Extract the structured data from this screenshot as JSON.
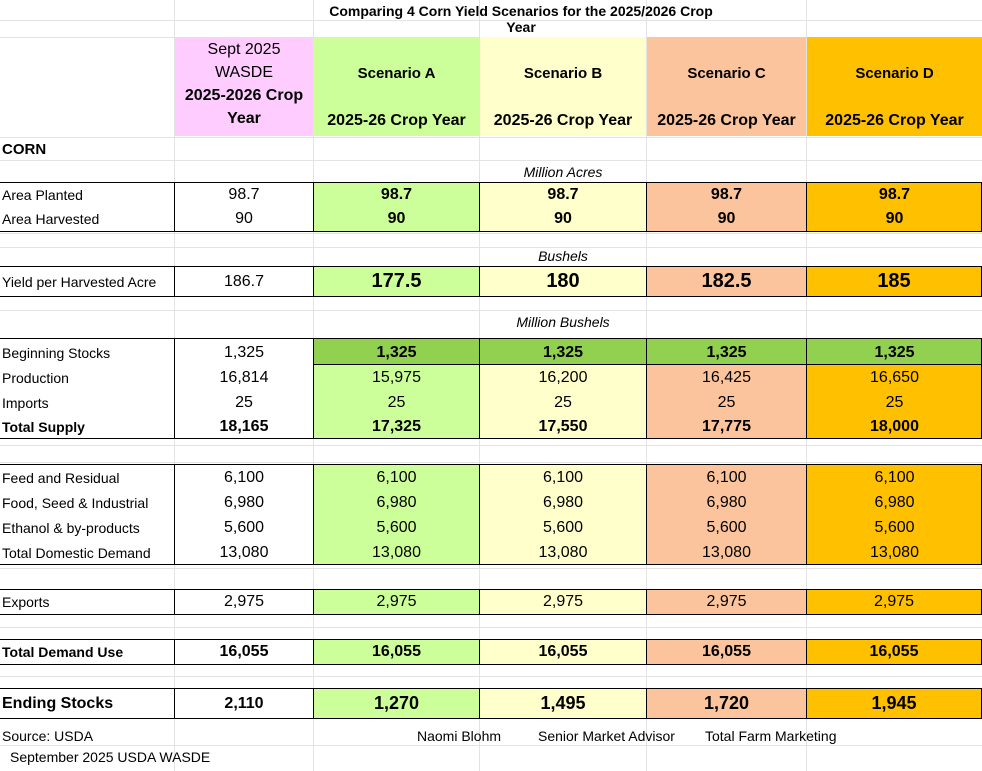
{
  "title": "Comparing  4  Corn  Yield Scenarios for the 2025/2026 Crop Year",
  "headers": {
    "wasde": {
      "line1": "Sept 2025",
      "line2": "WASDE",
      "line3": "2025-2026 Crop",
      "line4": "Year"
    },
    "scenarios": [
      {
        "name": "Scenario A",
        "sub": "2025-26 Crop Year",
        "color": "#ccff99"
      },
      {
        "name": "Scenario B",
        "sub": "2025-26 Crop Year",
        "color": "#ffffcc"
      },
      {
        "name": "Scenario C",
        "sub": "2025-26 Crop Year",
        "color": "#fcc49c"
      },
      {
        "name": "Scenario D",
        "sub": "2025-26 Crop Year",
        "color": "#ffc000"
      }
    ]
  },
  "section_label": "CORN",
  "units": {
    "acres": "Million Acres",
    "bushels": "Bushels",
    "million_bushels": "Million Bushels"
  },
  "rows": {
    "area_planted": {
      "label": "Area Planted",
      "wasde": "98.7",
      "a": "98.7",
      "b": "98.7",
      "c": "98.7",
      "d": "98.7"
    },
    "area_harvested": {
      "label": "Area Harvested",
      "wasde": "90",
      "a": "90",
      "b": "90",
      "c": "90",
      "d": "90"
    },
    "yield": {
      "label": "Yield per Harvested Acre",
      "wasde": "186.7",
      "a": "177.5",
      "b": "180",
      "c": "182.5",
      "d": "185"
    },
    "beginning_stocks": {
      "label": "Beginning Stocks",
      "wasde": "1,325",
      "a": "1,325",
      "b": "1,325",
      "c": "1,325",
      "d": "1,325"
    },
    "production": {
      "label": "Production",
      "wasde": "16,814",
      "a": "15,975",
      "b": "16,200",
      "c": "16,425",
      "d": "16,650"
    },
    "imports": {
      "label": "Imports",
      "wasde": "25",
      "a": "25",
      "b": "25",
      "c": "25",
      "d": "25"
    },
    "total_supply": {
      "label": "Total Supply",
      "wasde": "18,165",
      "a": "17,325",
      "b": "17,550",
      "c": "17,775",
      "d": "18,000"
    },
    "feed": {
      "label": "Feed and Residual",
      "wasde": "6,100",
      "a": "6,100",
      "b": "6,100",
      "c": "6,100",
      "d": "6,100"
    },
    "fsi": {
      "label": "Food, Seed & Industrial",
      "wasde": "6,980",
      "a": "6,980",
      "b": "6,980",
      "c": "6,980",
      "d": "6,980"
    },
    "ethanol": {
      "label": "Ethanol & by-products",
      "wasde": "5,600",
      "a": "5,600",
      "b": "5,600",
      "c": "5,600",
      "d": "5,600"
    },
    "total_domestic": {
      "label": "Total Domestic Demand",
      "wasde": "13,080",
      "a": "13,080",
      "b": "13,080",
      "c": "13,080",
      "d": "13,080"
    },
    "exports": {
      "label": "Exports",
      "wasde": "2,975",
      "a": "2,975",
      "b": "2,975",
      "c": "2,975",
      "d": "2,975"
    },
    "total_demand": {
      "label": "Total Demand Use",
      "wasde": "16,055",
      "a": "16,055",
      "b": "16,055",
      "c": "16,055",
      "d": "16,055"
    },
    "ending_stocks": {
      "label": "Ending Stocks",
      "wasde": "2,110",
      "a": "1,270",
      "b": "1,495",
      "c": "1,720",
      "d": "1,945"
    }
  },
  "footer": {
    "source": "Source:  USDA",
    "source2": "September 2025 USDA WASDE",
    "name": "Naomi Blohm",
    "role": "Senior Market Advisor",
    "company": "Total Farm Marketing"
  }
}
